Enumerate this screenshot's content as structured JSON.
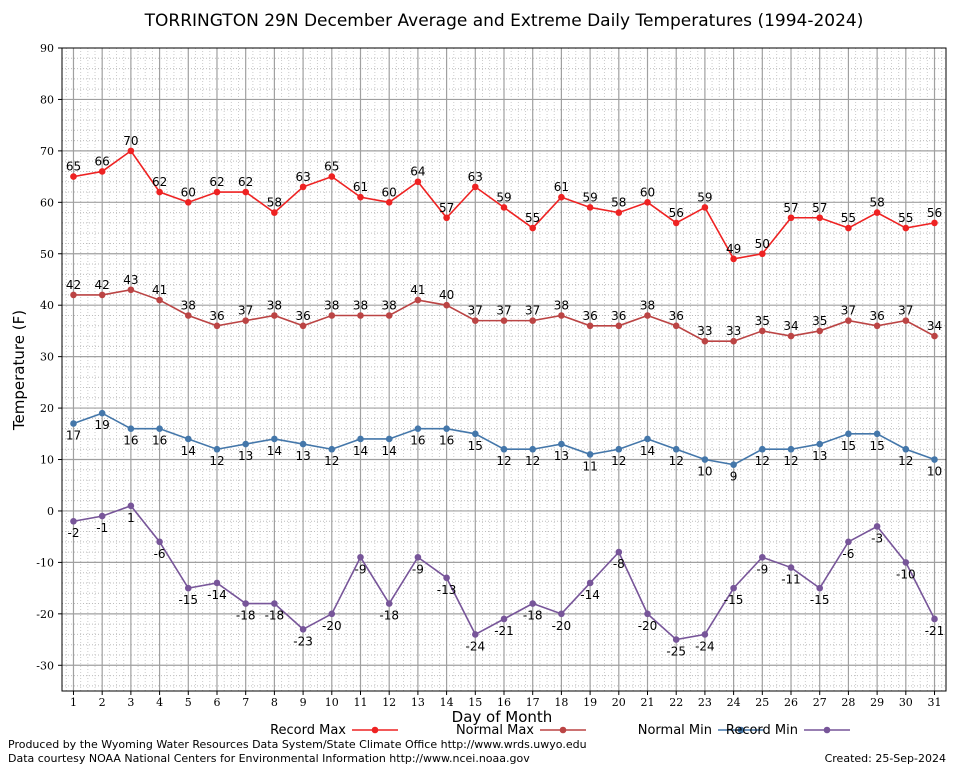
{
  "chart_data": {
    "type": "line",
    "title": "TORRINGTON 29N December Average and Extreme Daily Temperatures (1994-2024)",
    "xlabel": "Day of Month",
    "ylabel": "Temperature (F)",
    "ylim": [
      -35,
      90
    ],
    "yticks": [
      90,
      80,
      70,
      60,
      50,
      40,
      30,
      20,
      10,
      0,
      -10,
      -20,
      -30
    ],
    "xlim": [
      0.6,
      31.4
    ],
    "grid": true,
    "legend_placement": "bottom",
    "x": [
      1,
      2,
      3,
      4,
      5,
      6,
      7,
      8,
      9,
      10,
      11,
      12,
      13,
      14,
      15,
      16,
      17,
      18,
      19,
      20,
      21,
      22,
      23,
      24,
      25,
      26,
      27,
      28,
      29,
      30,
      31
    ],
    "series": [
      {
        "name": "Record Max",
        "color": "#ee2222",
        "label_position": "above",
        "values": [
          65,
          66,
          70,
          62,
          60,
          62,
          62,
          58,
          63,
          65,
          61,
          60,
          64,
          57,
          63,
          59,
          55,
          61,
          59,
          58,
          60,
          56,
          59,
          49,
          50,
          57,
          57,
          55,
          58,
          55,
          56
        ]
      },
      {
        "name": "Normal Max",
        "color": "#bb4444",
        "label_position": "above",
        "values": [
          42,
          42,
          43,
          41,
          38,
          36,
          37,
          38,
          36,
          38,
          38,
          38,
          41,
          40,
          37,
          37,
          37,
          38,
          36,
          36,
          38,
          36,
          33,
          33,
          35,
          34,
          35,
          37,
          36,
          37,
          34
        ]
      },
      {
        "name": "Normal Min",
        "color": "#4477aa",
        "label_position": "below",
        "values": [
          17,
          19,
          16,
          16,
          14,
          12,
          13,
          14,
          13,
          12,
          14,
          14,
          16,
          16,
          15,
          12,
          12,
          13,
          11,
          12,
          14,
          12,
          10,
          9,
          12,
          12,
          13,
          15,
          15,
          12,
          10
        ]
      },
      {
        "name": "Record Min",
        "color": "#775599",
        "label_position": "below",
        "values": [
          -2,
          -1,
          1,
          -6,
          -15,
          -14,
          -18,
          -18,
          -23,
          -20,
          -9,
          -18,
          -9,
          -13,
          -24,
          -21,
          -18,
          -20,
          -14,
          -8,
          -20,
          -25,
          -24,
          -15,
          -9,
          -11,
          -15,
          -6,
          -3,
          -10,
          -21
        ]
      }
    ]
  },
  "footer": {
    "line1": "Produced by the Wyoming Water Resources Data System/State Climate Office http://www.wrds.uwyo.edu",
    "line2": "Data courtesy NOAA National Centers for Environmental Information http://www.ncei.noaa.gov",
    "created": "Created:  25-Sep-2024"
  }
}
